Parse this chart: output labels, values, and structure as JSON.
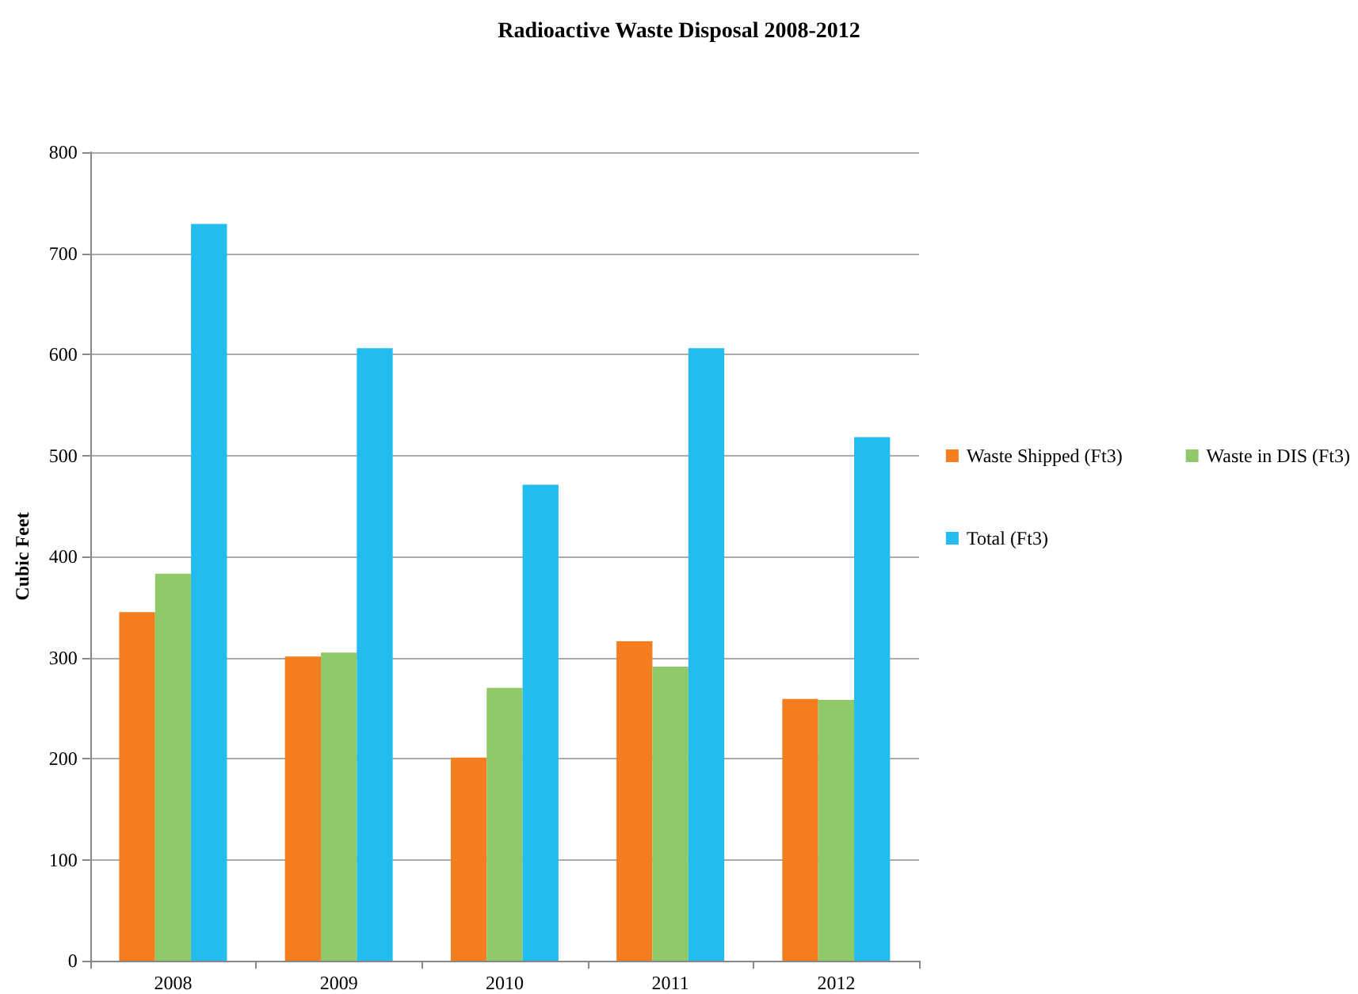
{
  "chart_data": {
    "type": "bar",
    "title": "Radioactive Waste Disposal 2008-2012",
    "ylabel": "Cubic Feet",
    "categories": [
      "2008",
      "2009",
      "2010",
      "2011",
      "2012"
    ],
    "series": [
      {
        "name": "Waste Shipped (Ft3)",
        "color": "#f47d20",
        "values": [
          345,
          301,
          201,
          316,
          259
        ]
      },
      {
        "name": "Waste in DIS (Ft3)",
        "color": "#8fc96a",
        "values": [
          383,
          305,
          270,
          291,
          258
        ]
      },
      {
        "name": "Total (Ft3)",
        "color": "#22bcee",
        "values": [
          729,
          606,
          471,
          606,
          518
        ]
      }
    ],
    "ylim": [
      0,
      800
    ],
    "yticks": [
      0,
      100,
      200,
      300,
      400,
      500,
      600,
      700,
      800
    ],
    "grid": "y",
    "legend": "right"
  }
}
